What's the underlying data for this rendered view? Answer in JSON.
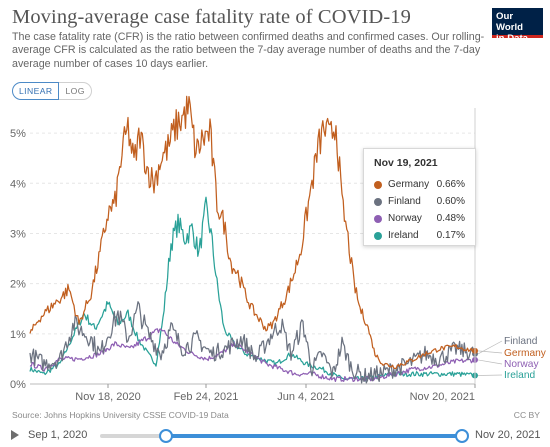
{
  "header": {
    "title": "Moving-average case fatality rate of COVID-19",
    "subtitle": "The case fatality rate (CFR) is the ratio between confirmed deaths and confirmed cases. Our rolling-average CFR is calculated as the ratio between the 7-day average number of deaths and the 7-day average number of cases 10 days earlier.",
    "logo_line1": "Our World",
    "logo_line2": "in Data"
  },
  "scale_toggle": {
    "linear": "LINEAR",
    "log": "LOG",
    "selected": "LINEAR"
  },
  "tooltip": {
    "date": "Nov 19, 2021",
    "rows": [
      {
        "name": "Germany",
        "value": "0.66%",
        "color": "#c15f1f"
      },
      {
        "name": "Finland",
        "value": "0.60%",
        "color": "#6b7280"
      },
      {
        "name": "Norway",
        "value": "0.48%",
        "color": "#8e5fb3"
      },
      {
        "name": "Ireland",
        "value": "0.17%",
        "color": "#2aa198"
      }
    ]
  },
  "footer": {
    "source": "Source: Johns Hopkins University CSSE COVID-19 Data",
    "license": "CC BY"
  },
  "timeline": {
    "start": "Sep 1, 2020",
    "end": "Nov 20, 2021"
  },
  "chart_data": {
    "type": "line",
    "title": "Moving-average case fatality rate of COVID-19",
    "x_range": [
      "2020-09-01",
      "2021-11-20"
    ],
    "x_ticks": [
      "Nov 18, 2020",
      "Feb 24, 2021",
      "Jun 4, 2021",
      "Nov 20, 2021"
    ],
    "y_ticks": [
      "0%",
      "1%",
      "2%",
      "3%",
      "4%",
      "5%"
    ],
    "ylim": [
      0,
      5.5
    ],
    "y_unit": "%",
    "grid": "horizontal",
    "series": [
      {
        "name": "Germany",
        "color": "#c15f1f",
        "end_label": "Germany",
        "points": [
          [
            "2020-09-01",
            1.0
          ],
          [
            "2020-09-10",
            1.3
          ],
          [
            "2020-09-20",
            1.5
          ],
          [
            "2020-10-01",
            1.7
          ],
          [
            "2020-10-10",
            1.9
          ],
          [
            "2020-10-20",
            1.2
          ],
          [
            "2020-11-01",
            1.8
          ],
          [
            "2020-11-10",
            2.6
          ],
          [
            "2020-11-18",
            3.4
          ],
          [
            "2020-11-25",
            3.6
          ],
          [
            "2020-12-02",
            4.6
          ],
          [
            "2020-12-08",
            5.1
          ],
          [
            "2020-12-14",
            4.4
          ],
          [
            "2020-12-20",
            5.0
          ],
          [
            "2020-12-27",
            4.3
          ],
          [
            "2021-01-03",
            4.0
          ],
          [
            "2021-01-10",
            4.5
          ],
          [
            "2021-01-17",
            4.7
          ],
          [
            "2021-01-24",
            5.1
          ],
          [
            "2021-01-31",
            5.3
          ],
          [
            "2021-02-07",
            5.5
          ],
          [
            "2021-02-14",
            4.6
          ],
          [
            "2021-02-21",
            4.9
          ],
          [
            "2021-02-28",
            5.0
          ],
          [
            "2021-03-07",
            3.6
          ],
          [
            "2021-03-14",
            3.2
          ],
          [
            "2021-03-21",
            2.4
          ],
          [
            "2021-03-28",
            2.2
          ],
          [
            "2021-04-04",
            1.8
          ],
          [
            "2021-04-11",
            1.5
          ],
          [
            "2021-04-18",
            1.3
          ],
          [
            "2021-04-25",
            1.1
          ],
          [
            "2021-05-02",
            1.2
          ],
          [
            "2021-05-09",
            1.5
          ],
          [
            "2021-05-16",
            1.8
          ],
          [
            "2021-05-23",
            2.2
          ],
          [
            "2021-05-30",
            2.7
          ],
          [
            "2021-06-04",
            3.3
          ],
          [
            "2021-06-10",
            4.0
          ],
          [
            "2021-06-16",
            4.7
          ],
          [
            "2021-06-22",
            5.1
          ],
          [
            "2021-06-28",
            4.9
          ],
          [
            "2021-07-04",
            5.2
          ],
          [
            "2021-07-10",
            3.6
          ],
          [
            "2021-07-16",
            2.9
          ],
          [
            "2021-07-22",
            2.0
          ],
          [
            "2021-07-28",
            1.5
          ],
          [
            "2021-08-04",
            1.2
          ],
          [
            "2021-08-12",
            0.6
          ],
          [
            "2021-08-20",
            0.4
          ],
          [
            "2021-09-01",
            0.35
          ],
          [
            "2021-09-15",
            0.45
          ],
          [
            "2021-10-01",
            0.6
          ],
          [
            "2021-10-15",
            0.7
          ],
          [
            "2021-11-01",
            0.75
          ],
          [
            "2021-11-10",
            0.7
          ],
          [
            "2021-11-20",
            0.66
          ]
        ]
      },
      {
        "name": "Finland",
        "color": "#6b7280",
        "end_label": "Finland",
        "points": [
          [
            "2020-09-01",
            0.6
          ],
          [
            "2020-09-15",
            0.4
          ],
          [
            "2020-10-01",
            0.5
          ],
          [
            "2020-10-15",
            1.2
          ],
          [
            "2020-11-01",
            0.9
          ],
          [
            "2020-11-10",
            0.6
          ],
          [
            "2020-11-18",
            1.0
          ],
          [
            "2020-11-28",
            1.4
          ],
          [
            "2020-12-08",
            0.9
          ],
          [
            "2020-12-18",
            1.5
          ],
          [
            "2020-12-28",
            1.0
          ],
          [
            "2021-01-10",
            0.6
          ],
          [
            "2021-01-20",
            1.1
          ],
          [
            "2021-02-01",
            0.7
          ],
          [
            "2021-02-15",
            0.9
          ],
          [
            "2021-03-01",
            0.6
          ],
          [
            "2021-03-15",
            0.7
          ],
          [
            "2021-04-01",
            0.9
          ],
          [
            "2021-04-15",
            0.5
          ],
          [
            "2021-05-01",
            1.0
          ],
          [
            "2021-05-10",
            1.2
          ],
          [
            "2021-05-20",
            0.6
          ],
          [
            "2021-06-01",
            1.2
          ],
          [
            "2021-06-10",
            0.3
          ],
          [
            "2021-06-20",
            0.6
          ],
          [
            "2021-07-01",
            0.2
          ],
          [
            "2021-07-10",
            0.8
          ],
          [
            "2021-07-20",
            0.3
          ],
          [
            "2021-08-01",
            0.15
          ],
          [
            "2021-08-15",
            0.2
          ],
          [
            "2021-09-01",
            0.3
          ],
          [
            "2021-09-15",
            0.4
          ],
          [
            "2021-10-01",
            0.6
          ],
          [
            "2021-10-15",
            0.5
          ],
          [
            "2021-11-01",
            0.7
          ],
          [
            "2021-11-20",
            0.6
          ]
        ]
      },
      {
        "name": "Norway",
        "color": "#8e5fb3",
        "end_label": "Norway",
        "points": [
          [
            "2020-09-01",
            0.4
          ],
          [
            "2020-09-15",
            0.3
          ],
          [
            "2020-10-01",
            0.5
          ],
          [
            "2020-10-20",
            0.5
          ],
          [
            "2020-11-10",
            0.6
          ],
          [
            "2020-11-25",
            0.8
          ],
          [
            "2020-12-10",
            0.7
          ],
          [
            "2020-12-25",
            0.9
          ],
          [
            "2021-01-10",
            1.1
          ],
          [
            "2021-01-25",
            0.8
          ],
          [
            "2021-02-10",
            0.6
          ],
          [
            "2021-02-25",
            0.5
          ],
          [
            "2021-03-10",
            0.6
          ],
          [
            "2021-03-25",
            0.8
          ],
          [
            "2021-04-10",
            0.6
          ],
          [
            "2021-04-25",
            0.4
          ],
          [
            "2021-05-10",
            0.3
          ],
          [
            "2021-05-25",
            0.2
          ],
          [
            "2021-06-10",
            0.2
          ],
          [
            "2021-07-01",
            0.1
          ],
          [
            "2021-07-20",
            0.1
          ],
          [
            "2021-08-10",
            0.1
          ],
          [
            "2021-09-01",
            0.2
          ],
          [
            "2021-09-20",
            0.3
          ],
          [
            "2021-10-10",
            0.35
          ],
          [
            "2021-11-01",
            0.45
          ],
          [
            "2021-11-20",
            0.48
          ]
        ]
      },
      {
        "name": "Ireland",
        "color": "#2aa198",
        "end_label": "Ireland",
        "points": [
          [
            "2020-09-01",
            0.3
          ],
          [
            "2020-09-15",
            0.2
          ],
          [
            "2020-10-01",
            0.4
          ],
          [
            "2020-10-15",
            1.0
          ],
          [
            "2020-10-25",
            1.4
          ],
          [
            "2020-11-05",
            1.1
          ],
          [
            "2020-11-18",
            1.6
          ],
          [
            "2020-11-28",
            1.2
          ],
          [
            "2020-12-08",
            1.4
          ],
          [
            "2020-12-18",
            0.9
          ],
          [
            "2020-12-28",
            0.6
          ],
          [
            "2021-01-05",
            0.4
          ],
          [
            "2021-01-12",
            1.3
          ],
          [
            "2021-01-20",
            2.8
          ],
          [
            "2021-01-27",
            3.2
          ],
          [
            "2021-02-03",
            2.9
          ],
          [
            "2021-02-10",
            3.1
          ],
          [
            "2021-02-17",
            2.6
          ],
          [
            "2021-02-24",
            3.5
          ],
          [
            "2021-03-01",
            3.0
          ],
          [
            "2021-03-07",
            2.0
          ],
          [
            "2021-03-14",
            1.1
          ],
          [
            "2021-03-24",
            0.8
          ],
          [
            "2021-04-05",
            0.6
          ],
          [
            "2021-04-20",
            0.5
          ],
          [
            "2021-05-05",
            0.4
          ],
          [
            "2021-05-20",
            0.6
          ],
          [
            "2021-06-04",
            0.4
          ],
          [
            "2021-06-20",
            0.3
          ],
          [
            "2021-07-10",
            0.1
          ],
          [
            "2021-08-01",
            0.1
          ],
          [
            "2021-09-01",
            0.2
          ],
          [
            "2021-10-01",
            0.2
          ],
          [
            "2021-11-01",
            0.2
          ],
          [
            "2021-11-20",
            0.17
          ]
        ]
      }
    ]
  }
}
